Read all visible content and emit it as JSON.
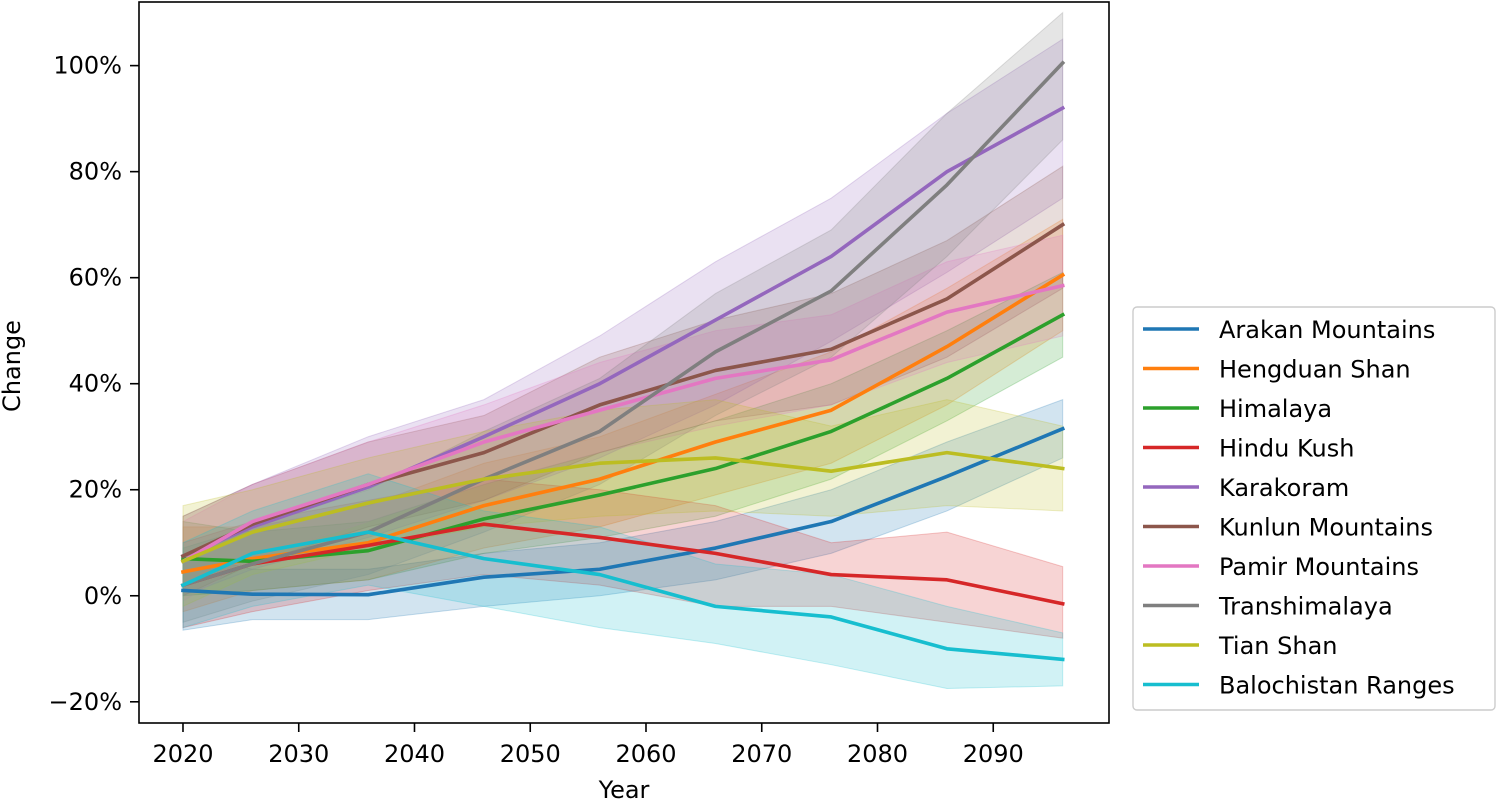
{
  "chart_data": {
    "type": "line",
    "xlabel": "Year",
    "ylabel": "Change",
    "xlim": [
      2016.2,
      2100.0
    ],
    "ylim": [
      -24,
      112
    ],
    "x_ticks": [
      2020,
      2030,
      2040,
      2050,
      2060,
      2070,
      2080,
      2090
    ],
    "y_ticks": [
      -20,
      0,
      20,
      40,
      60,
      80,
      100
    ],
    "x_tick_labels": [
      "2020",
      "2030",
      "2040",
      "2050",
      "2060",
      "2070",
      "2080",
      "2090"
    ],
    "y_tick_labels": [
      "−20%",
      "0%",
      "20%",
      "40%",
      "60%",
      "80%",
      "100%"
    ],
    "grid": false,
    "legend_position": "outside-right",
    "x": [
      2020,
      2026,
      2036,
      2046,
      2056,
      2066,
      2076,
      2086,
      2096
    ],
    "series": [
      {
        "name": "Arakan Mountains",
        "color": "#1f77b4",
        "values": [
          1,
          0.3,
          0.2,
          3.5,
          5,
          9,
          14,
          22.5,
          31.5
        ],
        "lower": [
          -6.5,
          -4.5,
          -4.5,
          -2,
          0,
          3,
          8,
          16,
          26
        ],
        "upper": [
          8,
          5,
          5,
          8,
          10,
          14,
          20,
          29,
          37
        ]
      },
      {
        "name": "Hengduan Shan",
        "color": "#ff7f0e",
        "values": [
          4.5,
          7,
          10,
          17,
          22,
          29,
          35,
          47,
          60.5
        ],
        "lower": [
          -3,
          1,
          3,
          9,
          13,
          19,
          25,
          36,
          50
        ],
        "upper": [
          13,
          13,
          17,
          25,
          30,
          38,
          46,
          58,
          71
        ]
      },
      {
        "name": "Himalaya",
        "color": "#2ca02c",
        "values": [
          7,
          6.5,
          8.5,
          14.5,
          19,
          24,
          31,
          41,
          53
        ],
        "lower": [
          0,
          1,
          3,
          8,
          11,
          15,
          22,
          33,
          45
        ],
        "upper": [
          14,
          12,
          14,
          21,
          27,
          33,
          40,
          50,
          61
        ]
      },
      {
        "name": "Hindu Kush",
        "color": "#d62728",
        "values": [
          2,
          6,
          9.5,
          13.5,
          11,
          8,
          4,
          3,
          -1.5
        ],
        "lower": [
          -6,
          -3,
          1,
          4,
          2,
          -2,
          -2,
          -5,
          -8
        ],
        "upper": [
          10,
          14,
          18,
          22,
          20,
          17,
          10,
          12,
          5.5
        ]
      },
      {
        "name": "Karakoram",
        "color": "#9467bd",
        "values": [
          7.5,
          13,
          20.5,
          30,
          40,
          52,
          64,
          80,
          92
        ],
        "lower": [
          0,
          5,
          11,
          18,
          26,
          36,
          48,
          61,
          75
        ],
        "upper": [
          15,
          21,
          30,
          37,
          49,
          63,
          75,
          91,
          105
        ]
      },
      {
        "name": "Kunlun Mountains",
        "color": "#8c564b",
        "values": [
          7.5,
          13.5,
          21,
          27,
          36,
          42.5,
          46.5,
          56,
          70
        ],
        "lower": [
          0,
          6,
          13,
          18,
          27,
          33,
          36,
          45,
          58
        ],
        "upper": [
          15,
          21,
          29,
          34,
          45,
          52,
          57,
          67,
          81
        ]
      },
      {
        "name": "Pamir Mountains",
        "color": "#e377c2",
        "values": [
          6.5,
          14,
          21,
          29,
          35,
          41,
          44.5,
          53.5,
          58.5
        ],
        "lower": [
          -1,
          7,
          14,
          21,
          27,
          32,
          36,
          44,
          49
        ],
        "upper": [
          14,
          21,
          29,
          36,
          44,
          50,
          53,
          63,
          68
        ]
      },
      {
        "name": "Transhimalaya",
        "color": "#7f7f7f",
        "values": [
          2,
          6,
          12,
          22,
          31,
          46,
          57.5,
          77.5,
          100.5
        ],
        "lower": [
          -5,
          -1,
          4,
          12,
          21,
          34,
          45,
          64,
          86
        ],
        "upper": [
          9,
          13,
          20,
          31,
          41,
          57,
          69,
          91,
          110
        ]
      },
      {
        "name": "Tian Shan",
        "color": "#bcbd22",
        "values": [
          6.5,
          12,
          17.5,
          22,
          25,
          26,
          23.5,
          27,
          24
        ],
        "lower": [
          -2,
          4,
          9,
          13,
          15,
          16,
          15,
          17,
          16
        ],
        "upper": [
          17,
          20,
          26,
          31,
          35,
          37,
          32,
          37,
          32
        ]
      },
      {
        "name": "Balochistan Ranges",
        "color": "#17becf",
        "values": [
          2,
          8,
          12,
          7,
          4,
          -2,
          -4,
          -10,
          -12
        ],
        "lower": [
          -6,
          -2,
          2,
          -2,
          -6,
          -9,
          -13,
          -17.5,
          -17
        ],
        "upper": [
          10,
          16,
          23,
          16,
          13,
          6,
          4,
          -2,
          -7
        ]
      }
    ]
  }
}
